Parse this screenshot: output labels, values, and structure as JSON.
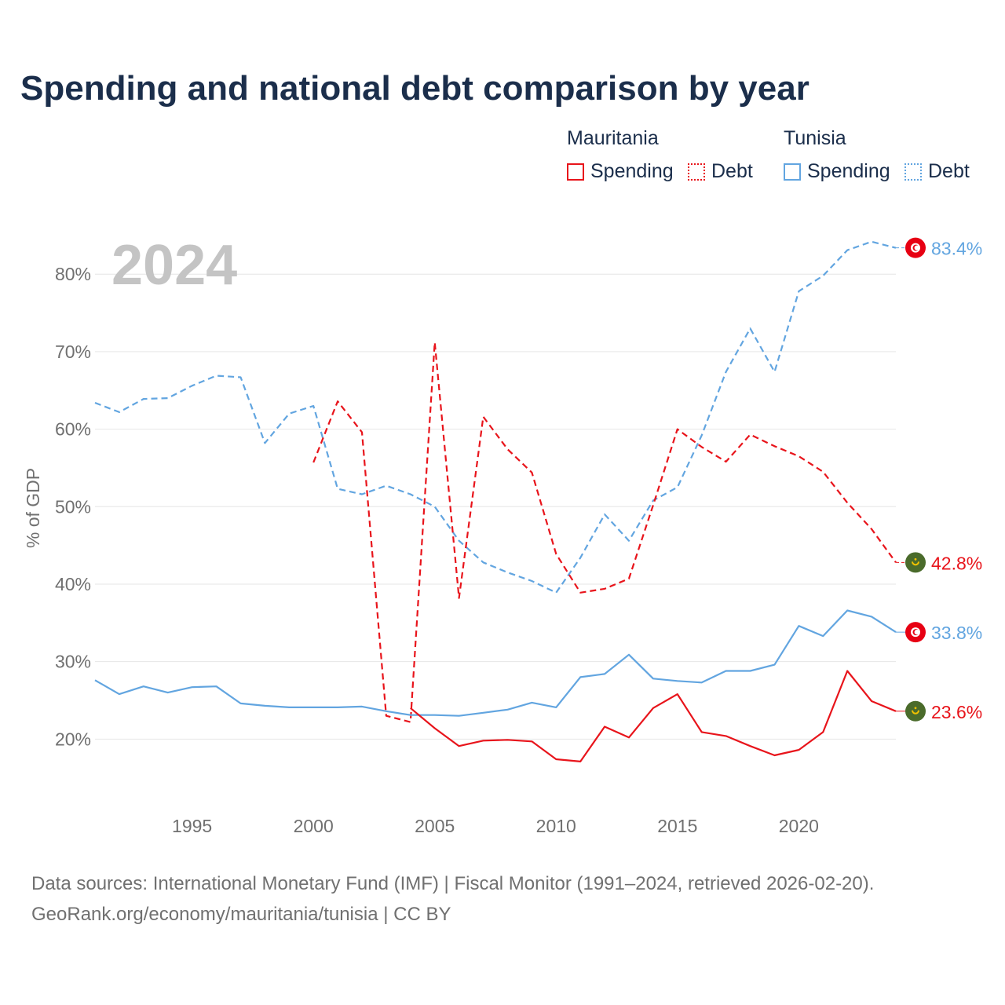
{
  "title": "Spending and national debt comparison by year",
  "legend": {
    "groups": [
      {
        "name": "Mauritania",
        "color": "#e8141b",
        "items": [
          {
            "label": "Spending",
            "style": "solid"
          },
          {
            "label": "Debt",
            "style": "dotted"
          }
        ]
      },
      {
        "name": "Tunisia",
        "color": "#62a5e0",
        "items": [
          {
            "label": "Spending",
            "style": "solid"
          },
          {
            "label": "Debt",
            "style": "dotted"
          }
        ]
      }
    ]
  },
  "footer": {
    "line1": "Data sources: International Monetary Fund (IMF) | Fiscal Monitor (1991–2024, retrieved 2026-02-20).",
    "line2": "GeoRank.org/economy/mauritania/tunisia | CC BY"
  },
  "chart_data": {
    "type": "line",
    "title": "Spending and national debt comparison by year",
    "year_watermark": "2024",
    "ylabel": "% of GDP",
    "xlabel": "",
    "xlim": [
      1991,
      2024
    ],
    "ylim": [
      10,
      86
    ],
    "yticks": [
      20,
      30,
      40,
      50,
      60,
      70,
      80
    ],
    "ytick_labels": [
      "20%",
      "30%",
      "40%",
      "50%",
      "60%",
      "70%",
      "80%"
    ],
    "xticks": [
      1995,
      2000,
      2005,
      2010,
      2015,
      2020
    ],
    "xtick_labels": [
      "1995",
      "2000",
      "2005",
      "2010",
      "2015",
      "2020"
    ],
    "grid": "horizontal",
    "series": [
      {
        "name": "Tunisia Debt",
        "country": "Tunisia",
        "metric": "Debt",
        "color": "#62a5e0",
        "dash": "dashed",
        "flag": "tunisia",
        "end_label": "83.4%",
        "x": [
          1991,
          1992,
          1993,
          1994,
          1995,
          1996,
          1997,
          1998,
          1999,
          2000,
          2001,
          2002,
          2003,
          2004,
          2005,
          2006,
          2007,
          2008,
          2009,
          2010,
          2011,
          2012,
          2013,
          2014,
          2015,
          2016,
          2017,
          2018,
          2019,
          2020,
          2021,
          2022,
          2023,
          2024
        ],
        "values": [
          63.4,
          62.2,
          63.9,
          64.0,
          65.6,
          66.9,
          66.7,
          58.2,
          62.0,
          63.0,
          52.3,
          51.6,
          52.7,
          51.6,
          50.0,
          45.6,
          42.8,
          41.5,
          40.4,
          38.9,
          43.4,
          49.0,
          45.6,
          50.8,
          52.5,
          59.2,
          67.4,
          73.0,
          67.4,
          77.8,
          79.8,
          83.1,
          84.2,
          83.4
        ]
      },
      {
        "name": "Mauritania Debt",
        "country": "Mauritania",
        "metric": "Debt",
        "color": "#e8141b",
        "dash": "dashed",
        "flag": "mauritania",
        "end_label": "42.8%",
        "x": [
          2000,
          2001,
          2002,
          2003,
          2004,
          2005,
          2006,
          2007,
          2008,
          2009,
          2010,
          2011,
          2012,
          2013,
          2014,
          2015,
          2016,
          2017,
          2018,
          2019,
          2020,
          2021,
          2022,
          2023,
          2024
        ],
        "values": [
          55.7,
          63.6,
          59.6,
          23.0,
          22.2,
          71.2,
          38.2,
          61.6,
          57.4,
          54.4,
          43.9,
          38.9,
          39.4,
          40.7,
          50.2,
          60.0,
          57.7,
          55.8,
          59.3,
          57.8,
          56.5,
          54.5,
          50.5,
          47.1,
          42.8
        ]
      },
      {
        "name": "Tunisia Spending",
        "country": "Tunisia",
        "metric": "Spending",
        "color": "#62a5e0",
        "dash": "solid",
        "flag": "tunisia",
        "end_label": "33.8%",
        "x": [
          1991,
          1992,
          1993,
          1994,
          1995,
          1996,
          1997,
          1998,
          1999,
          2000,
          2001,
          2002,
          2003,
          2004,
          2005,
          2006,
          2007,
          2008,
          2009,
          2010,
          2011,
          2012,
          2013,
          2014,
          2015,
          2016,
          2017,
          2018,
          2019,
          2020,
          2021,
          2022,
          2023,
          2024
        ],
        "values": [
          27.6,
          25.8,
          26.8,
          26.0,
          26.7,
          26.8,
          24.6,
          24.3,
          24.1,
          24.1,
          24.1,
          24.2,
          23.6,
          23.1,
          23.1,
          23.0,
          23.4,
          23.8,
          24.7,
          24.1,
          28.0,
          28.4,
          30.9,
          27.8,
          27.5,
          27.3,
          28.8,
          28.8,
          29.6,
          34.6,
          33.3,
          36.6,
          35.8,
          33.8
        ]
      },
      {
        "name": "Mauritania Spending",
        "country": "Mauritania",
        "metric": "Spending",
        "color": "#e8141b",
        "dash": "solid",
        "flag": "mauritania",
        "end_label": "23.6%",
        "x": [
          2004,
          2005,
          2006,
          2007,
          2008,
          2009,
          2010,
          2011,
          2012,
          2013,
          2014,
          2015,
          2016,
          2017,
          2018,
          2019,
          2020,
          2021,
          2022,
          2023,
          2024
        ],
        "values": [
          24.0,
          21.4,
          19.1,
          19.8,
          19.9,
          19.7,
          17.4,
          17.1,
          21.6,
          20.2,
          24.0,
          25.8,
          20.9,
          20.4,
          19.1,
          17.9,
          18.6,
          20.9,
          28.8,
          24.9,
          23.6
        ]
      }
    ]
  }
}
